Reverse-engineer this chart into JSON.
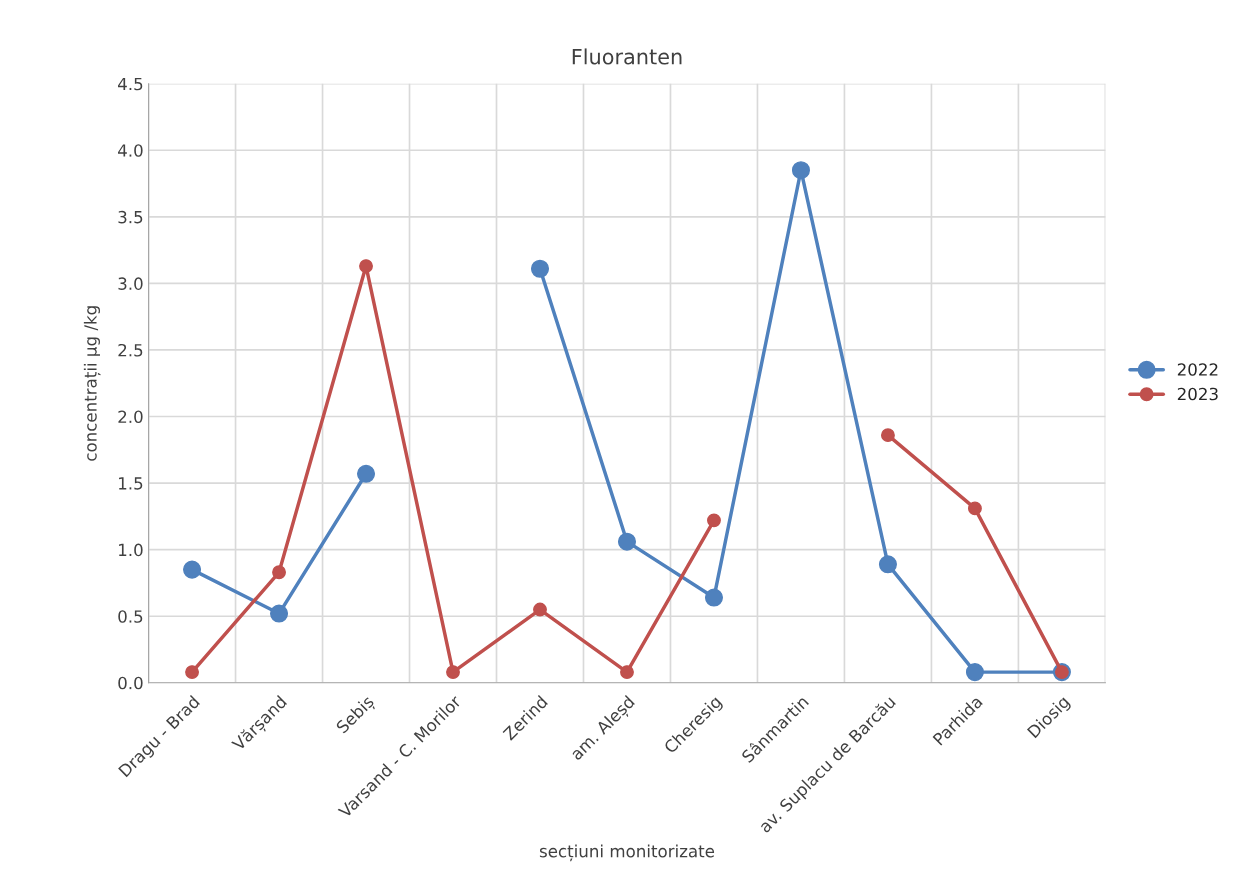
{
  "chart_data": {
    "type": "line",
    "title": "Fluoranten",
    "xlabel": "secțiuni monitorizate",
    "ylabel": "concentrații µg /kg",
    "categories": [
      "Dragu - Brad",
      "Vărșand",
      "Sebiș",
      "Varsand - C. Morilor",
      "Zerind",
      "am. Aleșd",
      "Cheresig",
      "Sânmartin",
      "av. Suplacu de Barcău",
      "Parhida",
      "Diosig"
    ],
    "series": [
      {
        "name": "2022",
        "color": "#4f81bd",
        "values": [
          0.85,
          0.52,
          1.57,
          null,
          3.11,
          1.06,
          0.64,
          3.85,
          0.89,
          0.08,
          0.08
        ]
      },
      {
        "name": "2023",
        "color": "#c0504d",
        "values": [
          0.08,
          0.83,
          3.13,
          0.08,
          0.55,
          0.08,
          1.22,
          null,
          1.86,
          1.31,
          0.08
        ]
      }
    ],
    "ylim": [
      0,
      4.5
    ],
    "yticks": [
      {
        "value": 0,
        "label": "0.0"
      },
      {
        "value": 0.5,
        "label": "0.5"
      },
      {
        "value": 1,
        "label": "1.0"
      },
      {
        "value": 1.5,
        "label": "1.5"
      },
      {
        "value": 2,
        "label": "2.0"
      },
      {
        "value": 2.5,
        "label": "2.5"
      },
      {
        "value": 3,
        "label": "3.0"
      },
      {
        "value": 3.5,
        "label": "3.5"
      },
      {
        "value": 4,
        "label": "4.0"
      },
      {
        "value": 4.5,
        "label": "4.5"
      }
    ],
    "grid": true,
    "legend": "right",
    "marker": "circle",
    "line_style": "solid"
  }
}
